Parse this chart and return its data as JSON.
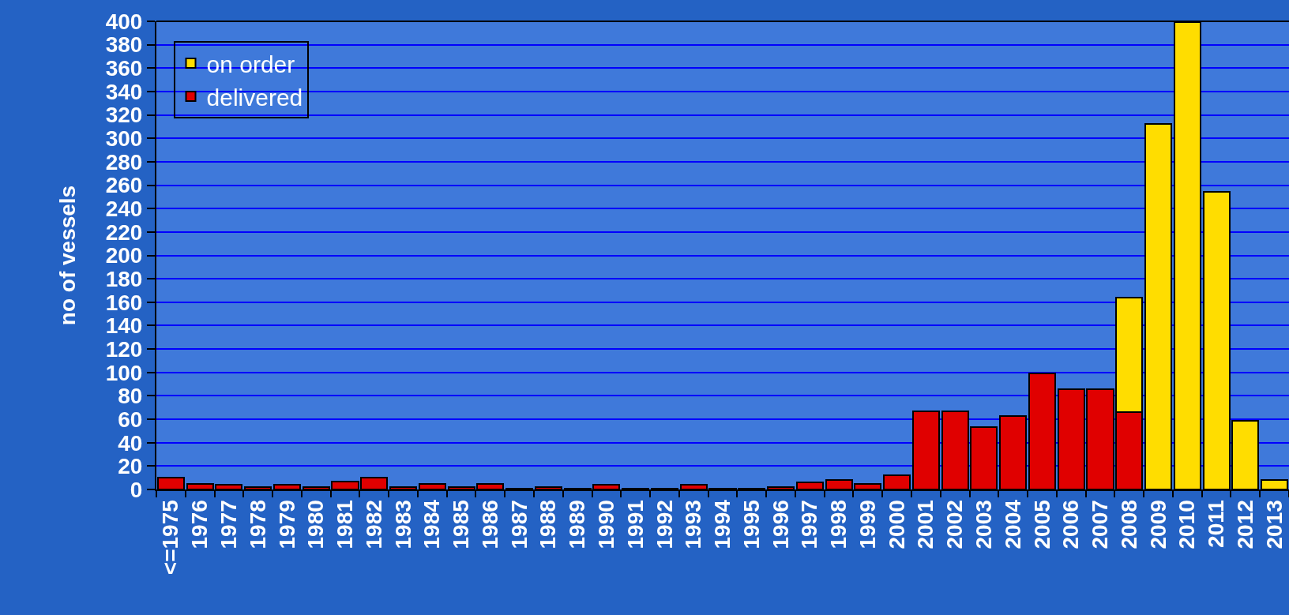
{
  "chart_data": {
    "type": "bar",
    "stacked": true,
    "ylabel": "no of vessels",
    "categories": [
      "<=1975",
      "1976",
      "1977",
      "1978",
      "1979",
      "1980",
      "1981",
      "1982",
      "1983",
      "1984",
      "1985",
      "1986",
      "1987",
      "1988",
      "1989",
      "1990",
      "1991",
      "1992",
      "1993",
      "1994",
      "1995",
      "1996",
      "1997",
      "1998",
      "1999",
      "2000",
      "2001",
      "2002",
      "2003",
      "2004",
      "2005",
      "2006",
      "2007",
      "2008",
      "2009",
      "2010",
      "2011",
      "2012",
      "2013"
    ],
    "series": [
      {
        "name": "delivered",
        "color": "#e00000",
        "values": [
          10,
          5,
          4,
          2,
          4,
          2,
          7,
          10,
          2,
          5,
          2,
          5,
          1,
          2,
          1,
          4,
          1,
          1,
          4,
          1,
          1,
          2,
          6,
          8,
          5,
          12,
          67,
          67,
          53,
          63,
          99,
          86,
          86,
          66,
          null,
          null,
          null,
          null,
          null
        ]
      },
      {
        "name": "on order",
        "color": "#ffdd00",
        "values": [
          null,
          null,
          null,
          null,
          null,
          null,
          null,
          null,
          null,
          null,
          null,
          null,
          null,
          null,
          null,
          null,
          null,
          null,
          null,
          null,
          null,
          null,
          null,
          null,
          null,
          null,
          null,
          null,
          null,
          null,
          null,
          null,
          null,
          98,
          312,
          399,
          254,
          59,
          8
        ]
      }
    ],
    "ylim": [
      0,
      400
    ],
    "yticks": [
      0,
      20,
      40,
      60,
      80,
      100,
      120,
      140,
      160,
      180,
      200,
      220,
      240,
      260,
      280,
      300,
      320,
      340,
      360,
      380,
      400
    ],
    "grid": "y",
    "legend": "top left"
  }
}
